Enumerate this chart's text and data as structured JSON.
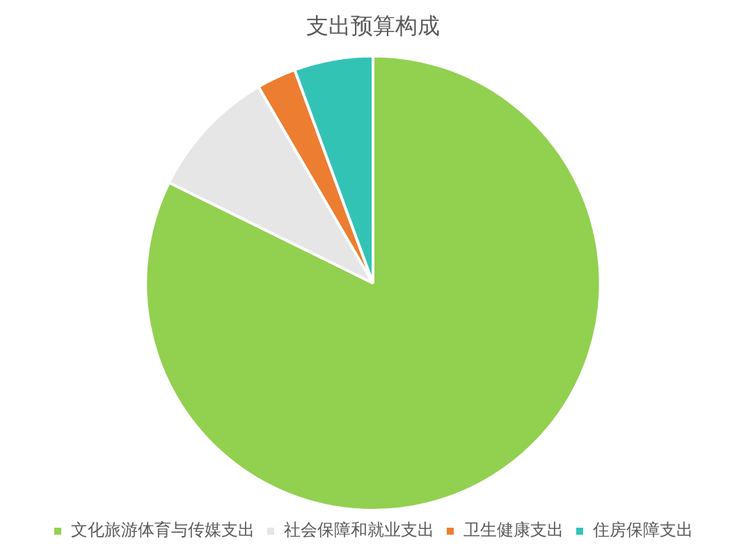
{
  "chart_data": {
    "type": "pie",
    "title": "支出预算构成",
    "categories": [
      "文化旅游体育与传媒支出",
      "社会保障和就业支出",
      "卫生健康支出",
      "住房保障支出"
    ],
    "values": [
      82.3,
      9.3,
      2.8,
      5.6
    ],
    "colors": [
      "#92d050",
      "#e7e6e6",
      "#ed7d31",
      "#33c3b5"
    ],
    "legend": "bottom"
  }
}
